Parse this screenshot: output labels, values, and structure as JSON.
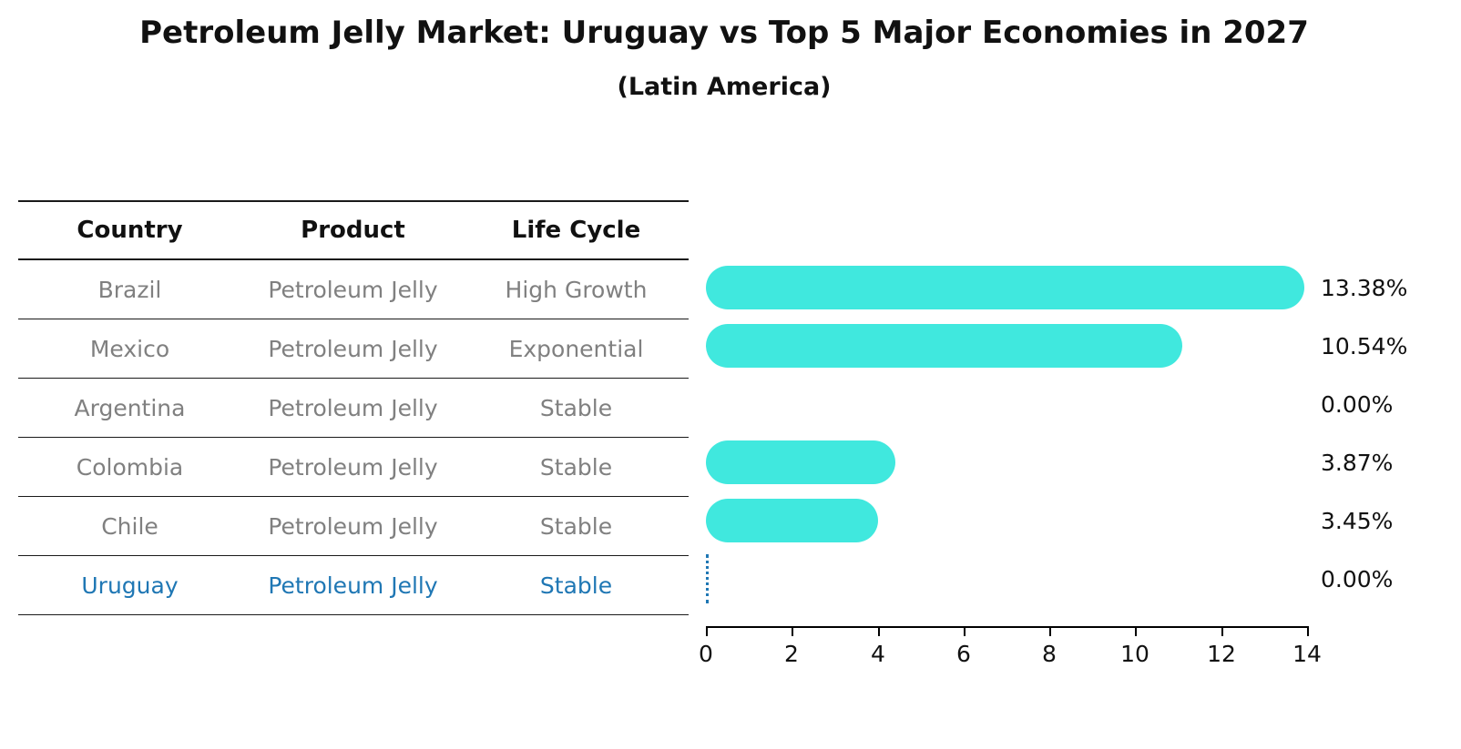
{
  "title": "Petroleum Jelly Market: Uruguay vs Top 5 Major Economies in 2027",
  "subtitle": "(Latin America)",
  "table": {
    "headers": [
      "Country",
      "Product",
      "Life Cycle"
    ],
    "rows": [
      {
        "country": "Brazil",
        "product": "Petroleum Jelly",
        "life_cycle": "High Growth",
        "highlight": false
      },
      {
        "country": "Mexico",
        "product": "Petroleum Jelly",
        "life_cycle": "Exponential",
        "highlight": false
      },
      {
        "country": "Argentina",
        "product": "Petroleum Jelly",
        "life_cycle": "Stable",
        "highlight": false
      },
      {
        "country": "Colombia",
        "product": "Petroleum Jelly",
        "life_cycle": "Stable",
        "highlight": false
      },
      {
        "country": "Chile",
        "product": "Petroleum Jelly",
        "life_cycle": "Stable",
        "highlight": false
      },
      {
        "country": "Uruguay",
        "product": "Petroleum Jelly",
        "life_cycle": "Stable",
        "highlight": true
      }
    ]
  },
  "chart_data": {
    "type": "bar",
    "orientation": "horizontal",
    "title": "Petroleum Jelly Market: Uruguay vs Top 5 Major Economies in 2027",
    "subtitle": "(Latin America)",
    "categories": [
      "Brazil",
      "Mexico",
      "Argentina",
      "Colombia",
      "Chile",
      "Uruguay"
    ],
    "values": [
      13.38,
      10.54,
      0.0,
      3.87,
      3.45,
      0.0
    ],
    "value_labels": [
      "13.38%",
      "10.54%",
      "0.00%",
      "3.87%",
      "3.45%",
      "0.00%"
    ],
    "xlabel": "",
    "ylabel": "",
    "xlim": [
      0,
      14
    ],
    "xticks": [
      0,
      2,
      4,
      6,
      8,
      10,
      12,
      14
    ],
    "grid": false,
    "legend": "none",
    "bar_color": "#40E8DE",
    "highlight_color": "#1f77b4",
    "highlight_category": "Uruguay",
    "highlight_marker": "dotted-zero-line"
  },
  "colors": {
    "background": "#ffffff",
    "text_primary": "#111111",
    "text_muted": "#808080",
    "accent_bar": "#40E8DE",
    "accent_highlight": "#1f77b4",
    "rule_line": "#1a1a1a"
  }
}
